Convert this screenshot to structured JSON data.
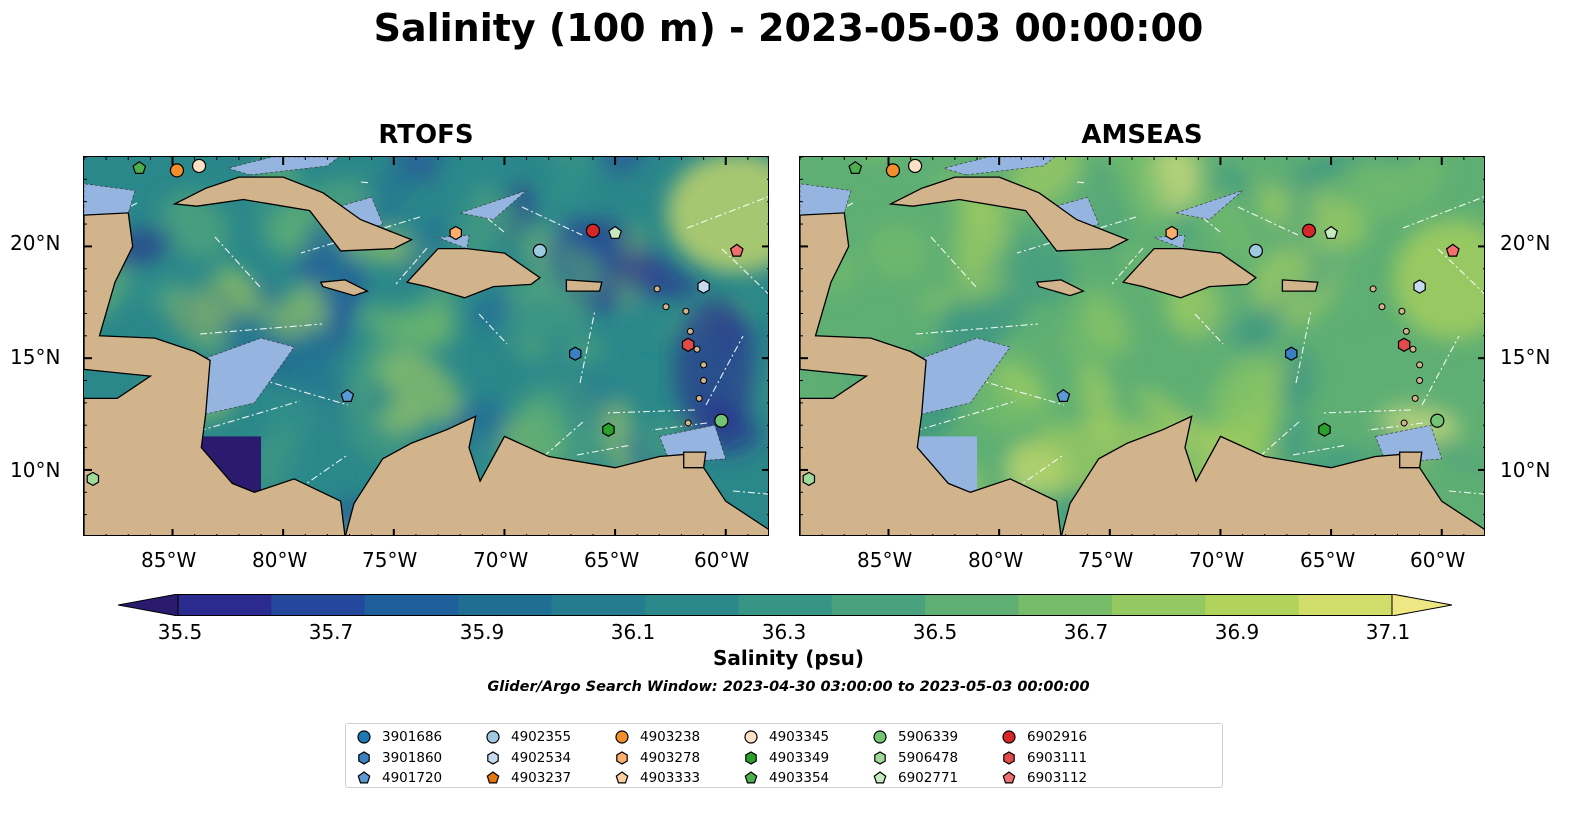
{
  "title": "Salinity (100 m) - 2023-05-03 00:00:00",
  "panels": [
    {
      "title": "RTOFS"
    },
    {
      "title": "AMSEAS"
    }
  ],
  "axes": {
    "lon_ticks": [
      "85°W",
      "80°W",
      "75°W",
      "70°W",
      "65°W",
      "60°W"
    ],
    "lat_ticks": [
      "20°N",
      "15°N",
      "10°N"
    ],
    "lon_range": [
      -89,
      -58
    ],
    "lat_range": [
      7,
      24
    ]
  },
  "colorbar": {
    "label": "Salinity (psu)",
    "ticks": [
      "35.5",
      "35.7",
      "35.9",
      "36.1",
      "36.3",
      "36.5",
      "36.7",
      "36.9",
      "37.1"
    ],
    "range": [
      35.4,
      37.2
    ],
    "extend": "both",
    "colors": [
      "#2a1b6e",
      "#2b2a8f",
      "#24499c",
      "#1f5f9a",
      "#1f6f93",
      "#247c8e",
      "#2b888a",
      "#379586",
      "#4aa17e",
      "#5faf74",
      "#77bd69",
      "#93c960",
      "#b1d35c",
      "#d1dd68",
      "#efe784"
    ]
  },
  "search_window": "Glider/Argo Search Window: 2023-04-30 03:00:00 to 2023-05-03 00:00:00",
  "colors": {
    "land": "#d2b48c",
    "shelf": "#95b5e0",
    "coast": "#000000"
  },
  "legend": [
    {
      "id": "3901686",
      "marker": "circle",
      "color": "#1f77b4"
    },
    {
      "id": "3901860",
      "marker": "hexagon",
      "color": "#3a7fc0"
    },
    {
      "id": "4901720",
      "marker": "pentagon",
      "color": "#5b9bd5"
    },
    {
      "id": "4902355",
      "marker": "circle",
      "color": "#9ecae1"
    },
    {
      "id": "4902534",
      "marker": "hexagon",
      "color": "#c6dbef"
    },
    {
      "id": "4903237",
      "marker": "pentagon",
      "color": "#e6750a"
    },
    {
      "id": "4903238",
      "marker": "circle",
      "color": "#f28e2b"
    },
    {
      "id": "4903278",
      "marker": "hexagon",
      "color": "#fdae6b"
    },
    {
      "id": "4903333",
      "marker": "pentagon",
      "color": "#fdd0a2"
    },
    {
      "id": "4903345",
      "marker": "circle",
      "color": "#fde0c5"
    },
    {
      "id": "4903349",
      "marker": "hexagon",
      "color": "#2ca02c"
    },
    {
      "id": "4903354",
      "marker": "pentagon",
      "color": "#4cae4c"
    },
    {
      "id": "5906339",
      "marker": "circle",
      "color": "#74c476"
    },
    {
      "id": "5906478",
      "marker": "hexagon",
      "color": "#a1d99b"
    },
    {
      "id": "6902771",
      "marker": "pentagon",
      "color": "#c7e9c0"
    },
    {
      "id": "6902916",
      "marker": "circle",
      "color": "#d62728"
    },
    {
      "id": "6903111",
      "marker": "hexagon",
      "color": "#e34a4a"
    },
    {
      "id": "6903112",
      "marker": "pentagon",
      "color": "#f07070"
    }
  ],
  "floats": [
    {
      "id": "4903354",
      "lon": -86.5,
      "lat": 23.5
    },
    {
      "id": "4903238",
      "lon": -84.8,
      "lat": 23.4
    },
    {
      "id": "4903345",
      "lon": -83.8,
      "lat": 23.6
    },
    {
      "id": "4903278",
      "lon": -72.2,
      "lat": 20.6
    },
    {
      "id": "4902355",
      "lon": -68.4,
      "lat": 19.8
    },
    {
      "id": "6902916",
      "lon": -66.0,
      "lat": 20.7
    },
    {
      "id": "6902771",
      "lon": -65.0,
      "lat": 20.6
    },
    {
      "id": "6903112",
      "lon": -59.5,
      "lat": 19.8
    },
    {
      "id": "4902534",
      "lon": -61.0,
      "lat": 18.2
    },
    {
      "id": "3901860",
      "lon": -66.8,
      "lat": 15.2
    },
    {
      "id": "6903111",
      "lon": -61.7,
      "lat": 15.6
    },
    {
      "id": "4901720",
      "lon": -77.1,
      "lat": 13.3
    },
    {
      "id": "4903349",
      "lon": -65.3,
      "lat": 11.8
    },
    {
      "id": "5906339",
      "lon": -60.2,
      "lat": 12.2
    },
    {
      "id": "5906478",
      "lon": -88.6,
      "lat": 9.6
    }
  ]
}
